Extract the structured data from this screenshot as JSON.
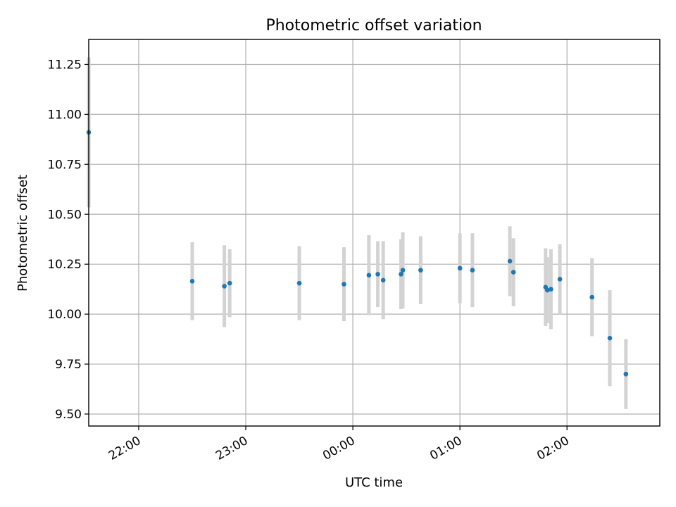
{
  "chart_data": {
    "type": "scatter",
    "title": "Photometric offset variation",
    "xlabel": "UTC time",
    "ylabel": "Photometric offset",
    "xlim": [
      "21:32",
      "02:52"
    ],
    "ylim": [
      9.44,
      11.375
    ],
    "grid": true,
    "x_ticks": [
      "22:00",
      "23:00",
      "00:00",
      "01:00",
      "02:00"
    ],
    "y_ticks": [
      "9.50",
      "9.75",
      "10.00",
      "10.25",
      "10.50",
      "10.75",
      "11.00",
      "11.25"
    ],
    "colors": {
      "points": "#1f77b4",
      "error_bars": "#d3d3d3"
    },
    "series": [
      {
        "x": [
          "21:32",
          "22:30",
          "22:48",
          "22:51",
          "23:30",
          "23:55",
          "00:09",
          "00:14",
          "00:17",
          "00:27",
          "00:28",
          "00:38",
          "01:00",
          "01:07",
          "01:28",
          "01:30",
          "01:48",
          "01:49",
          "01:51",
          "01:56",
          "02:14",
          "02:24",
          "02:33"
        ],
        "y": [
          10.91,
          10.165,
          10.14,
          10.155,
          10.155,
          10.15,
          10.195,
          10.2,
          10.17,
          10.2,
          10.22,
          10.22,
          10.23,
          10.22,
          10.265,
          10.21,
          10.135,
          10.12,
          10.125,
          10.175,
          10.085,
          9.88,
          9.7
        ],
        "err": [
          0.375,
          0.195,
          0.205,
          0.17,
          0.185,
          0.185,
          0.2,
          0.165,
          0.195,
          0.175,
          0.19,
          0.17,
          0.175,
          0.185,
          0.175,
          0.17,
          0.195,
          0.165,
          0.2,
          0.175,
          0.195,
          0.24,
          0.175
        ]
      }
    ]
  }
}
